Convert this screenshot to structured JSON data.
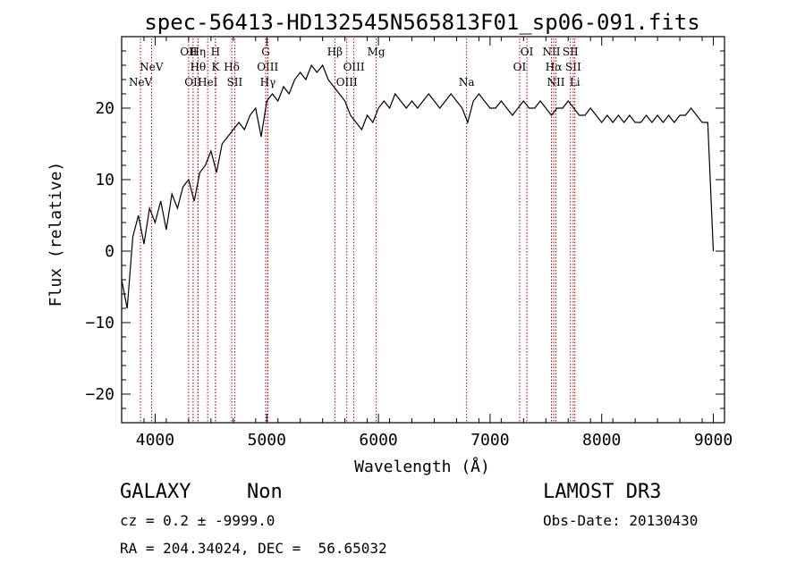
{
  "chart_data": {
    "type": "line",
    "title": "spec-56413-HD132545N565813F01_sp06-091.fits",
    "xlabel": "Wavelength (Å)",
    "ylabel": "Flux (relative)",
    "xlim": [
      3700,
      9100
    ],
    "ylim": [
      -24,
      30
    ],
    "xticks": [
      4000,
      5000,
      6000,
      7000,
      8000,
      9000
    ],
    "xtick_labels": [
      "4000",
      "5000",
      "6000",
      "7000",
      "8000",
      "9000"
    ],
    "yticks": [
      -20,
      -10,
      0,
      10,
      20
    ],
    "ytick_labels": [
      "−20",
      "−10",
      "0",
      "10",
      "20"
    ],
    "series": [
      {
        "name": "spectrum",
        "x": [
          3700,
          3750,
          3800,
          3850,
          3900,
          3950,
          4000,
          4050,
          4100,
          4150,
          4200,
          4250,
          4300,
          4350,
          4400,
          4450,
          4500,
          4550,
          4600,
          4650,
          4700,
          4750,
          4800,
          4850,
          4900,
          4950,
          5000,
          5050,
          5100,
          5150,
          5200,
          5250,
          5300,
          5350,
          5400,
          5450,
          5500,
          5550,
          5600,
          5650,
          5700,
          5750,
          5800,
          5850,
          5900,
          5950,
          6000,
          6050,
          6100,
          6150,
          6200,
          6250,
          6300,
          6350,
          6400,
          6450,
          6500,
          6550,
          6600,
          6650,
          6700,
          6750,
          6800,
          6850,
          6900,
          6950,
          7000,
          7050,
          7100,
          7150,
          7200,
          7250,
          7300,
          7350,
          7400,
          7450,
          7500,
          7550,
          7600,
          7650,
          7700,
          7750,
          7800,
          7850,
          7900,
          7950,
          8000,
          8050,
          8100,
          8150,
          8200,
          8250,
          8300,
          8350,
          8400,
          8450,
          8500,
          8550,
          8600,
          8650,
          8700,
          8750,
          8800,
          8850,
          8900,
          8950,
          9000
        ],
        "values": [
          -4,
          -8,
          2,
          5,
          1,
          6,
          4,
          7,
          3,
          8,
          6,
          9,
          10,
          7,
          11,
          12,
          14,
          11,
          15,
          16,
          17,
          18,
          17,
          19,
          20,
          16,
          21,
          22,
          21,
          23,
          22,
          24,
          25,
          24,
          26,
          25,
          26,
          24,
          23,
          22,
          21,
          19,
          18,
          17,
          19,
          18,
          20,
          21,
          20,
          22,
          21,
          20,
          21,
          20,
          21,
          22,
          21,
          20,
          21,
          22,
          21,
          20,
          18,
          21,
          22,
          21,
          20,
          20,
          21,
          20,
          19,
          20,
          21,
          20,
          20,
          21,
          20,
          19,
          20,
          20,
          21,
          20,
          19,
          19,
          20,
          19,
          18,
          19,
          18,
          19,
          18,
          19,
          18,
          18,
          19,
          18,
          19,
          18,
          19,
          18,
          19,
          19,
          20,
          19,
          18,
          18,
          0
        ]
      }
    ],
    "line_markers": [
      {
        "wavelength": 3869,
        "label": "NeV",
        "row": 2
      },
      {
        "wavelength": 3968,
        "label": "NeV",
        "row": 1
      },
      {
        "wavelength": 4300,
        "label": "OII",
        "row": 0
      },
      {
        "wavelength": 4340,
        "label": "OII",
        "row": 2
      },
      {
        "wavelength": 4383,
        "label": "Hη",
        "row": 0
      },
      {
        "wavelength": 4384,
        "label": "Hθ",
        "row": 1
      },
      {
        "wavelength": 4471,
        "label": "HeI",
        "row": 2
      },
      {
        "wavelength": 4540,
        "label": "H",
        "row": 0
      },
      {
        "wavelength": 4541,
        "label": "K",
        "row": 1
      },
      {
        "wavelength": 4686,
        "label": "Hδ",
        "row": 1
      },
      {
        "wavelength": 4713,
        "label": "SII",
        "row": 2
      },
      {
        "wavelength": 4990,
        "label": "G",
        "row": 0
      },
      {
        "wavelength": 5008,
        "label": "OIII",
        "row": 1
      },
      {
        "wavelength": 5010,
        "label": "Hγ",
        "row": 2
      },
      {
        "wavelength": 5610,
        "label": "Hβ",
        "row": 0
      },
      {
        "wavelength": 5717,
        "label": "OIII",
        "row": 2
      },
      {
        "wavelength": 5780,
        "label": "OIII",
        "row": 1
      },
      {
        "wavelength": 5980,
        "label": "Mg",
        "row": 0
      },
      {
        "wavelength": 6790,
        "label": "Na",
        "row": 2
      },
      {
        "wavelength": 7265,
        "label": "OI",
        "row": 1
      },
      {
        "wavelength": 7330,
        "label": "OI",
        "row": 0
      },
      {
        "wavelength": 7550,
        "label": "NII",
        "row": 0
      },
      {
        "wavelength": 7570,
        "label": "Hα",
        "row": 1
      },
      {
        "wavelength": 7590,
        "label": "NII",
        "row": 2
      },
      {
        "wavelength": 7720,
        "label": "SII",
        "row": 0
      },
      {
        "wavelength": 7745,
        "label": "SII",
        "row": 1
      },
      {
        "wavelength": 7760,
        "label": "Li",
        "row": 2
      }
    ],
    "grid": false,
    "marker_color": "#b30000"
  },
  "info": {
    "object_class": "GALAXY",
    "subclass": "Non",
    "cz": "cz = 0.2 ± -9999.0",
    "coords": "RA = 204.34024, DEC =  56.65032",
    "survey": "LAMOST DR3",
    "obs_date": "Obs-Date: 20130430"
  }
}
